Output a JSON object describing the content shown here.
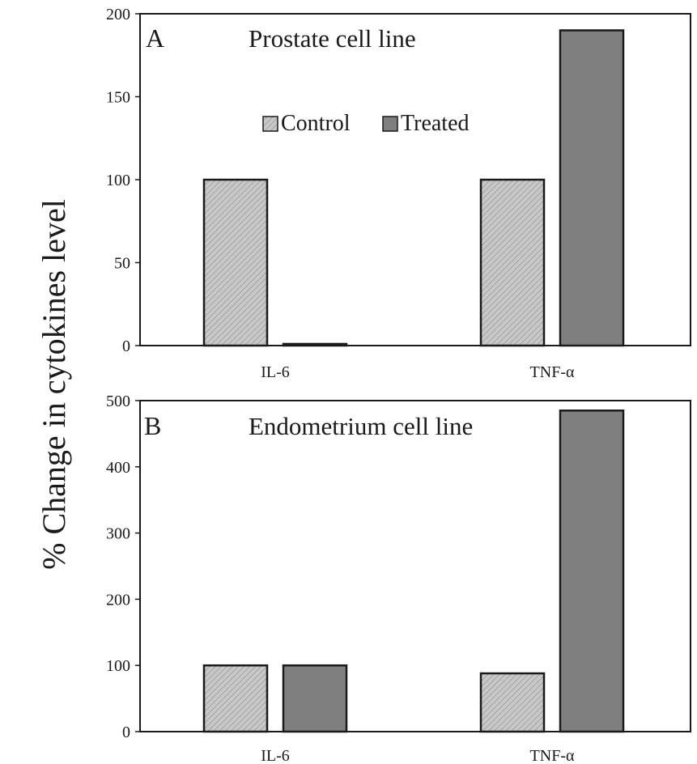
{
  "ylabel": "% Change  in cytokines level",
  "colors": {
    "control_fill": "#c8c8c8",
    "control_hatch": "#9a9a9a",
    "treated_fill": "#7f7f7f",
    "outline": "#1a1a1a"
  },
  "legend": {
    "items": [
      {
        "label": "Control",
        "key": "control"
      },
      {
        "label": "Treated",
        "key": "treated"
      }
    ]
  },
  "chart_data": [
    {
      "type": "bar",
      "panel": "A",
      "title": "Prostate cell  line",
      "categories": [
        "IL-6",
        "TNF-α"
      ],
      "series": [
        {
          "name": "Control",
          "key": "control",
          "values": [
            100,
            100
          ]
        },
        {
          "name": "Treated",
          "key": "treated",
          "values": [
            1,
            190
          ]
        }
      ],
      "ylim": [
        0,
        200
      ],
      "yticks": [
        0,
        50,
        100,
        150,
        200
      ],
      "legend_position": "top-center",
      "grid": false
    },
    {
      "type": "bar",
      "panel": "B",
      "title": "Endometrium  cell  line",
      "categories": [
        "IL-6",
        "TNF-α"
      ],
      "series": [
        {
          "name": "Control",
          "key": "control",
          "values": [
            100,
            88
          ]
        },
        {
          "name": "Treated",
          "key": "treated",
          "values": [
            100,
            485
          ]
        }
      ],
      "ylim": [
        0,
        500
      ],
      "yticks": [
        0,
        100,
        200,
        300,
        400,
        500
      ],
      "grid": false
    }
  ]
}
